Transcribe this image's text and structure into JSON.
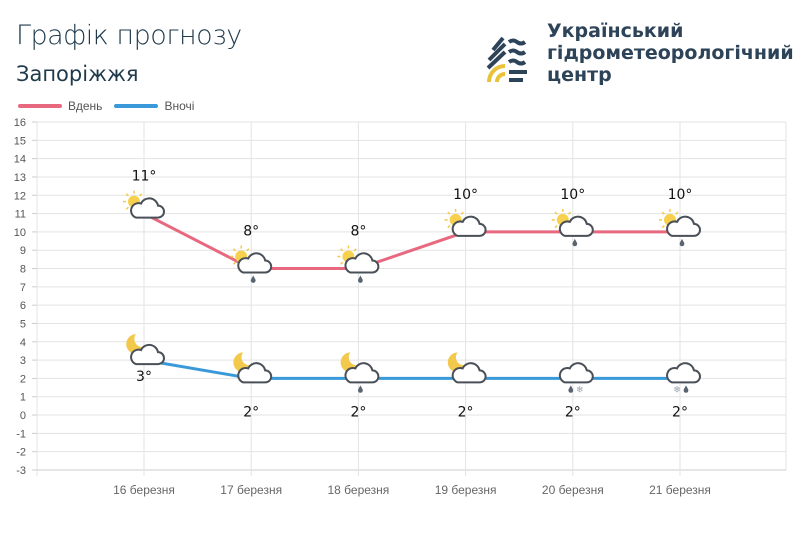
{
  "header": {
    "title": "Графік прогнозу",
    "city": "Запоріжжя"
  },
  "logo": {
    "line1": "Український",
    "line2": "гідрометеорологічний",
    "line3": "центр"
  },
  "colors": {
    "day": "#e8697f",
    "night": "#3a9ad9"
  },
  "chart_data": {
    "type": "line",
    "categories": [
      "16 березня",
      "17 березня",
      "18 березня",
      "19 березня",
      "20 березня",
      "21 березня"
    ],
    "ylim": [
      -3,
      16
    ],
    "yticks": [
      "-3",
      "-2",
      "-1",
      "0",
      "1",
      "2",
      "3",
      "4",
      "5",
      "6",
      "7",
      "8",
      "9",
      "10",
      "11",
      "12",
      "13",
      "14",
      "15",
      "16"
    ],
    "grid": true,
    "legend": "top-left",
    "series": [
      {
        "name": "Вдень",
        "values": [
          11,
          8,
          8,
          10,
          10,
          10
        ],
        "labels": [
          "11°",
          "8°",
          "8°",
          "10°",
          "10°",
          "10°"
        ],
        "icons": [
          "sun-cloud",
          "sun-cloud-rain",
          "sun-cloud-rain",
          "sun-cloud",
          "sun-cloud-rain",
          "sun-cloud-rain"
        ]
      },
      {
        "name": "Вночі",
        "values": [
          3,
          2,
          2,
          2,
          2,
          2
        ],
        "labels": [
          "3°",
          "2°",
          "2°",
          "2°",
          "2°",
          "2°"
        ],
        "icons": [
          "moon-cloud",
          "moon-cloud",
          "moon-cloud-rain",
          "moon-cloud",
          "cloud-rain-snow",
          "cloud-snow-rain"
        ]
      }
    ]
  }
}
